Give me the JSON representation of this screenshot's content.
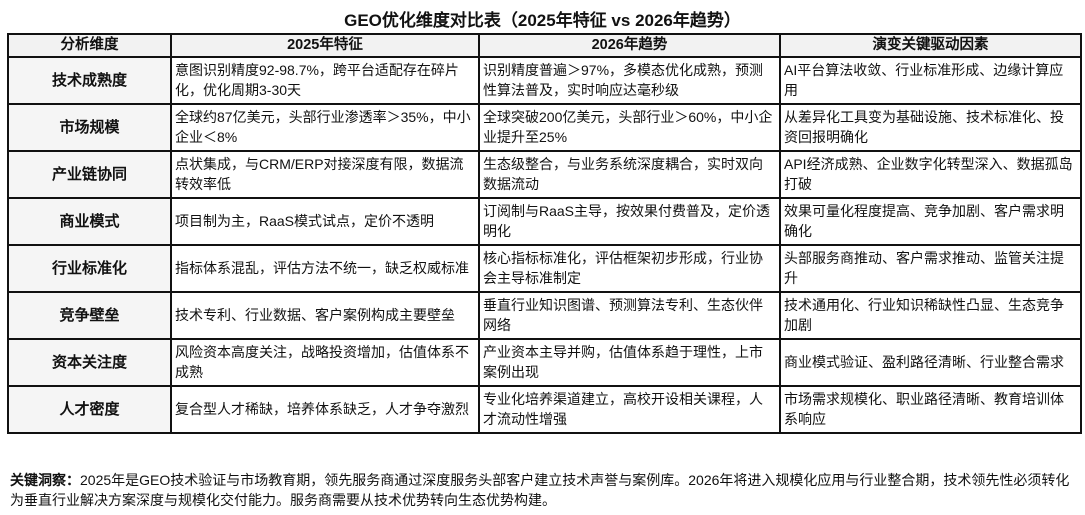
{
  "title": "GEO优化维度对比表（2025年特征 vs 2026年趋势）",
  "table": {
    "headers": [
      "分析维度",
      "2025年特征",
      "2026年趋势",
      "演变关键驱动因素"
    ],
    "rows": [
      [
        "技术成熟度",
        "意图识别精度92-98.7%，跨平台适配存在碎片化，优化周期3-30天",
        "识别精度普遍＞97%，多模态优化成熟，预测性算法普及，实时响应达毫秒级",
        "AI平台算法收敛、行业标准形成、边缘计算应用"
      ],
      [
        "市场规模",
        "全球约87亿美元，头部行业渗透率＞35%，中小企业＜8%",
        "全球突破200亿美元，头部行业＞60%，中小企业提升至25%",
        "从差异化工具变为基础设施、技术标准化、投资回报明确化"
      ],
      [
        "产业链协同",
        "点状集成，与CRM/ERP对接深度有限，数据流转效率低",
        "生态级整合，与业务系统深度耦合，实时双向数据流动",
        "API经济成熟、企业数字化转型深入、数据孤岛打破"
      ],
      [
        "商业模式",
        "项目制为主，RaaS模式试点，定价不透明",
        "订阅制与RaaS主导，按效果付费普及，定价透明化",
        "效果可量化程度提高、竞争加剧、客户需求明确化"
      ],
      [
        "行业标准化",
        "指标体系混乱，评估方法不统一，缺乏权威标准",
        "核心指标标准化，评估框架初步形成，行业协会主导标准制定",
        "头部服务商推动、客户需求推动、监管关注提升"
      ],
      [
        "竞争壁垒",
        "技术专利、行业数据、客户案例构成主要壁垒",
        "垂直行业知识图谱、预测算法专利、生态伙伴网络",
        "技术通用化、行业知识稀缺性凸显、生态竞争加剧"
      ],
      [
        "资本关注度",
        "风险资本高度关注，战略投资增加，估值体系不成熟",
        "产业资本主导并购，估值体系趋于理性，上市案例出现",
        "商业模式验证、盈利路径清晰、行业整合需求"
      ],
      [
        "人才密度",
        "复合型人才稀缺，培养体系缺乏，人才争夺激烈",
        "专业化培养渠道建立，高校开设相关课程，人才流动性增强",
        "市场需求规模化、职业路径清晰、教育培训体系响应"
      ]
    ]
  },
  "footer": {
    "label": "关键洞察：",
    "text": "2025年是GEO技术验证与市场教育期，领先服务商通过深度服务头部客户建立技术声誉与案例库。2026年将进入规模化应用与行业整合期，技术领先性必须转化为垂直行业解决方案深度与规模化交付能力。服务商需要从技术优势转向生态优势构建。"
  }
}
